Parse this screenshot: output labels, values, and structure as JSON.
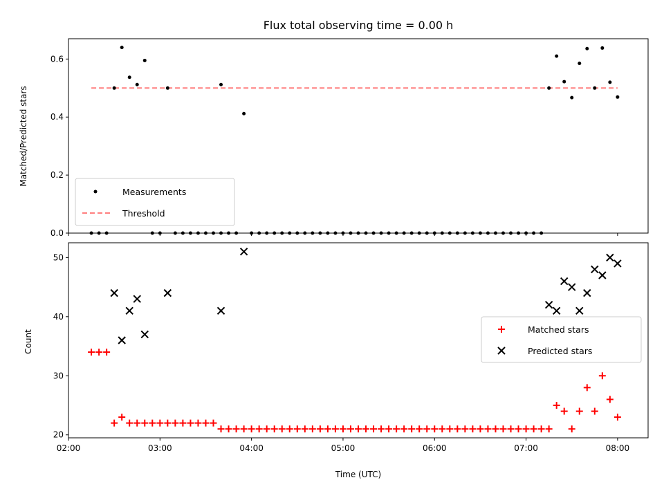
{
  "chart_data": [
    {
      "type": "scatter",
      "title": "Flux total observing time = 0.00 h",
      "xlabel": "",
      "ylabel": "Matched/Predicted stars",
      "ylim": [
        0,
        0.67
      ],
      "yticks": [
        "0.0",
        "0.2",
        "0.4",
        "0.6"
      ],
      "ytick_values": [
        0,
        0.2,
        0.4,
        0.6
      ],
      "legend": {
        "placement": "lower-left",
        "entries": [
          "Measurements",
          "Threshold"
        ]
      },
      "series": [
        {
          "name": "Measurements",
          "color": "#000000",
          "marker": "dot",
          "points": [
            [
              "02:15",
              0
            ],
            [
              "02:20",
              0
            ],
            [
              "02:25",
              0
            ],
            [
              "02:30",
              0.5
            ],
            [
              "02:35",
              0.64
            ],
            [
              "02:40",
              0.537
            ],
            [
              "02:45",
              0.512
            ],
            [
              "02:50",
              0.595
            ],
            [
              "02:55",
              0
            ],
            [
              "03:00",
              0
            ],
            [
              "03:05",
              0.5
            ],
            [
              "03:10",
              0
            ],
            [
              "03:15",
              0
            ],
            [
              "03:20",
              0
            ],
            [
              "03:25",
              0
            ],
            [
              "03:30",
              0
            ],
            [
              "03:35",
              0
            ],
            [
              "03:40",
              0
            ],
            [
              "03:40",
              0.512
            ],
            [
              "03:45",
              0
            ],
            [
              "03:50",
              0
            ],
            [
              "03:55",
              0.412
            ],
            [
              "04:00",
              0
            ],
            [
              "04:05",
              0
            ],
            [
              "04:10",
              0
            ],
            [
              "04:15",
              0
            ],
            [
              "04:20",
              0
            ],
            [
              "04:25",
              0
            ],
            [
              "04:30",
              0
            ],
            [
              "04:35",
              0
            ],
            [
              "04:40",
              0
            ],
            [
              "04:45",
              0
            ],
            [
              "04:50",
              0
            ],
            [
              "04:55",
              0
            ],
            [
              "05:00",
              0
            ],
            [
              "05:05",
              0
            ],
            [
              "05:10",
              0
            ],
            [
              "05:15",
              0
            ],
            [
              "05:20",
              0
            ],
            [
              "05:25",
              0
            ],
            [
              "05:30",
              0
            ],
            [
              "05:35",
              0
            ],
            [
              "05:40",
              0
            ],
            [
              "05:45",
              0
            ],
            [
              "05:50",
              0
            ],
            [
              "05:55",
              0
            ],
            [
              "06:00",
              0
            ],
            [
              "06:05",
              0
            ],
            [
              "06:10",
              0
            ],
            [
              "06:15",
              0
            ],
            [
              "06:20",
              0
            ],
            [
              "06:25",
              0
            ],
            [
              "06:30",
              0
            ],
            [
              "06:35",
              0
            ],
            [
              "06:40",
              0
            ],
            [
              "06:45",
              0
            ],
            [
              "06:50",
              0
            ],
            [
              "06:55",
              0
            ],
            [
              "07:00",
              0
            ],
            [
              "07:05",
              0
            ],
            [
              "07:10",
              0
            ],
            [
              "07:15",
              0.5
            ],
            [
              "07:20",
              0.61
            ],
            [
              "07:25",
              0.522
            ],
            [
              "07:30",
              0.467
            ],
            [
              "07:35",
              0.585
            ],
            [
              "07:40",
              0.636
            ],
            [
              "07:45",
              0.5
            ],
            [
              "07:50",
              0.638
            ],
            [
              "07:55",
              0.52
            ],
            [
              "08:00",
              0.469
            ]
          ]
        },
        {
          "name": "Threshold",
          "color": "#ff7f7f",
          "style": "dashed",
          "x": [
            "02:15",
            "08:00"
          ],
          "values": [
            0.5,
            0.5
          ]
        }
      ]
    },
    {
      "type": "scatter",
      "title": "",
      "xlabel": "Time (UTC)",
      "ylabel": "Count",
      "xlim": [
        "02:00",
        "08:20"
      ],
      "xticks": [
        "02:00",
        "03:00",
        "04:00",
        "05:00",
        "06:00",
        "07:00",
        "08:00"
      ],
      "ylim": [
        19.5,
        52.5
      ],
      "yticks": [
        "20",
        "30",
        "40",
        "50"
      ],
      "ytick_values": [
        20,
        30,
        40,
        50
      ],
      "legend": {
        "placement": "right",
        "entries": [
          "Matched stars",
          "Predicted stars"
        ]
      },
      "series": [
        {
          "name": "Matched stars",
          "color": "#ff0000",
          "marker": "plus",
          "points": [
            [
              "02:15",
              34
            ],
            [
              "02:20",
              34
            ],
            [
              "02:25",
              34
            ],
            [
              "02:30",
              22
            ],
            [
              "02:35",
              23
            ],
            [
              "02:40",
              22
            ],
            [
              "02:45",
              22
            ],
            [
              "02:50",
              22
            ],
            [
              "02:55",
              22
            ],
            [
              "03:00",
              22
            ],
            [
              "03:05",
              22
            ],
            [
              "03:10",
              22
            ],
            [
              "03:15",
              22
            ],
            [
              "03:20",
              22
            ],
            [
              "03:25",
              22
            ],
            [
              "03:30",
              22
            ],
            [
              "03:35",
              22
            ],
            [
              "03:40",
              21
            ],
            [
              "03:45",
              21
            ],
            [
              "03:50",
              21
            ],
            [
              "03:55",
              21
            ],
            [
              "04:00",
              21
            ],
            [
              "04:05",
              21
            ],
            [
              "04:10",
              21
            ],
            [
              "04:15",
              21
            ],
            [
              "04:20",
              21
            ],
            [
              "04:25",
              21
            ],
            [
              "04:30",
              21
            ],
            [
              "04:35",
              21
            ],
            [
              "04:40",
              21
            ],
            [
              "04:45",
              21
            ],
            [
              "04:50",
              21
            ],
            [
              "04:55",
              21
            ],
            [
              "05:00",
              21
            ],
            [
              "05:05",
              21
            ],
            [
              "05:10",
              21
            ],
            [
              "05:15",
              21
            ],
            [
              "05:20",
              21
            ],
            [
              "05:25",
              21
            ],
            [
              "05:30",
              21
            ],
            [
              "05:35",
              21
            ],
            [
              "05:40",
              21
            ],
            [
              "05:45",
              21
            ],
            [
              "05:50",
              21
            ],
            [
              "05:55",
              21
            ],
            [
              "06:00",
              21
            ],
            [
              "06:05",
              21
            ],
            [
              "06:10",
              21
            ],
            [
              "06:15",
              21
            ],
            [
              "06:20",
              21
            ],
            [
              "06:25",
              21
            ],
            [
              "06:30",
              21
            ],
            [
              "06:35",
              21
            ],
            [
              "06:40",
              21
            ],
            [
              "06:45",
              21
            ],
            [
              "06:50",
              21
            ],
            [
              "06:55",
              21
            ],
            [
              "07:00",
              21
            ],
            [
              "07:05",
              21
            ],
            [
              "07:10",
              21
            ],
            [
              "07:15",
              21
            ],
            [
              "07:20",
              25
            ],
            [
              "07:25",
              24
            ],
            [
              "07:30",
              21
            ],
            [
              "07:35",
              24
            ],
            [
              "07:40",
              28
            ],
            [
              "07:45",
              24
            ],
            [
              "07:50",
              30
            ],
            [
              "07:55",
              26
            ],
            [
              "08:00",
              23
            ]
          ]
        },
        {
          "name": "Predicted stars",
          "color": "#000000",
          "marker": "x",
          "points": [
            [
              "02:30",
              44
            ],
            [
              "02:35",
              36
            ],
            [
              "02:40",
              41
            ],
            [
              "02:45",
              43
            ],
            [
              "02:50",
              37
            ],
            [
              "03:05",
              44
            ],
            [
              "03:40",
              41
            ],
            [
              "03:55",
              51
            ],
            [
              "07:15",
              42
            ],
            [
              "07:20",
              41
            ],
            [
              "07:25",
              46
            ],
            [
              "07:30",
              45
            ],
            [
              "07:35",
              41
            ],
            [
              "07:40",
              44
            ],
            [
              "07:45",
              48
            ],
            [
              "07:50",
              47
            ],
            [
              "07:55",
              50
            ],
            [
              "08:00",
              49
            ]
          ]
        }
      ]
    }
  ]
}
